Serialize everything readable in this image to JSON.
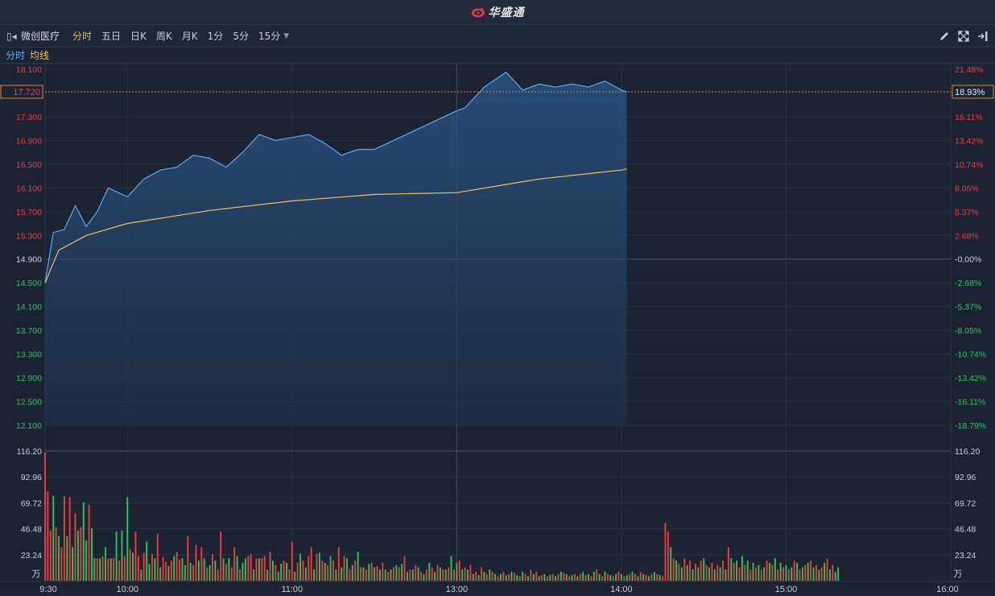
{
  "app": {
    "brand": "华盛通"
  },
  "toolbar": {
    "stock_name": "微创医疗",
    "tabs": [
      {
        "label": "分时",
        "active": true
      },
      {
        "label": "五日",
        "active": false
      },
      {
        "label": "日K",
        "active": false
      },
      {
        "label": "周K",
        "active": false
      },
      {
        "label": "月K",
        "active": false
      },
      {
        "label": "1分",
        "active": false
      },
      {
        "label": "5分",
        "active": false
      },
      {
        "label": "15分",
        "active": false,
        "dropdown": true
      }
    ],
    "icons": [
      "pencil-icon",
      "expand-icon",
      "exit-icon"
    ]
  },
  "legend": {
    "price": "分时",
    "avg": "均线"
  },
  "colors": {
    "price": "#5aa8ee",
    "avg": "#f0c452",
    "up": "#f23b3b",
    "down": "#2ec45a",
    "neutral": "#c8ccd4",
    "bg": "#1c2434",
    "grid": "#2b3547"
  },
  "current": {
    "price_label": "17.720",
    "change_label": "18.93%"
  },
  "chart_data": [
    {
      "type": "line",
      "title": "",
      "x_labels": [
        "9:30",
        "10:00",
        "11:00",
        "13:00",
        "14:00",
        "15:00",
        "16:00"
      ],
      "y_labels": [
        "18.100",
        "17.720",
        "17.300",
        "16.900",
        "16.500",
        "16.100",
        "15.700",
        "15.300",
        "14.900",
        "14.500",
        "14.100",
        "13.700",
        "13.300",
        "12.900",
        "12.500",
        "12.100"
      ],
      "y_percent_labels": [
        "21.48%",
        "18.93%",
        "16.11%",
        "13.42%",
        "10.74%",
        "8.05%",
        "5.37%",
        "2.68%",
        "-0.00%",
        "-2.68%",
        "-5.37%",
        "-8.05%",
        "-10.74%",
        "-13.42%",
        "-16.11%",
        "-18.79%"
      ],
      "ylim": [
        12.1,
        18.1
      ],
      "prev_close": 14.9,
      "series": [
        {
          "name": "分时",
          "x": [
            "9:30",
            "9:33",
            "9:37",
            "9:41",
            "9:45",
            "9:49",
            "9:53",
            "10:00",
            "10:06",
            "10:12",
            "10:18",
            "10:24",
            "10:30",
            "10:36",
            "10:42",
            "10:48",
            "10:54",
            "11:00",
            "11:06",
            "11:12",
            "11:18",
            "11:24",
            "11:30",
            "13:00",
            "13:03",
            "13:10",
            "13:18",
            "13:24",
            "13:30",
            "13:36",
            "13:42",
            "13:48",
            "13:54",
            "14:00",
            "14:02"
          ],
          "values": [
            14.5,
            15.35,
            15.4,
            15.8,
            15.45,
            15.7,
            16.1,
            15.95,
            16.25,
            16.4,
            16.45,
            16.65,
            16.6,
            16.45,
            16.7,
            17.0,
            16.9,
            16.95,
            17.0,
            16.85,
            16.65,
            16.75,
            16.75,
            17.4,
            17.45,
            17.8,
            18.05,
            17.75,
            17.85,
            17.8,
            17.85,
            17.8,
            17.9,
            17.75,
            17.72
          ]
        },
        {
          "name": "均线",
          "x": [
            "9:30",
            "9:35",
            "9:45",
            "10:00",
            "10:30",
            "11:00",
            "11:30",
            "13:00",
            "13:30",
            "14:00",
            "14:02"
          ],
          "values": [
            14.5,
            15.05,
            15.3,
            15.5,
            15.72,
            15.88,
            15.99,
            16.02,
            16.25,
            16.4,
            16.42
          ]
        }
      ]
    },
    {
      "type": "bar",
      "title": "",
      "unit_label": "万",
      "y_labels": [
        "116.20",
        "92.96",
        "69.72",
        "46.48",
        "23.24"
      ],
      "ylim": [
        0,
        116.2
      ],
      "series": [
        {
          "name": "volume",
          "x_start": "9:30",
          "x_step_minutes": 1,
          "values": [
            115,
            80,
            45,
            76,
            48,
            40,
            30,
            76,
            40,
            75,
            30,
            60,
            45,
            48,
            70,
            36,
            68,
            47,
            20,
            20,
            20,
            22,
            30,
            20,
            20,
            20,
            44,
            18,
            45,
            22,
            75,
            28,
            25,
            44,
            22,
            10,
            25,
            35,
            15,
            24,
            20,
            42,
            12,
            21,
            17,
            13,
            18,
            22,
            26,
            19,
            20,
            14,
            40,
            16,
            14,
            32,
            18,
            30,
            20,
            12,
            14,
            24,
            18,
            10,
            44,
            20,
            15,
            20,
            12,
            30,
            22,
            10,
            16,
            20,
            22,
            24,
            10,
            20,
            20,
            20,
            22,
            10,
            26,
            18,
            14,
            8,
            15,
            18,
            16,
            10,
            35,
            8,
            16,
            24,
            18,
            12,
            22,
            30,
            10,
            24,
            25,
            18,
            16,
            14,
            22,
            18,
            10,
            30,
            12,
            22,
            20,
            10,
            14,
            18,
            26,
            12,
            12,
            10,
            15,
            16,
            12,
            13,
            10,
            16,
            10,
            8,
            10,
            12,
            14,
            12,
            15,
            22,
            8,
            10,
            10,
            14,
            12,
            8,
            6,
            10,
            16,
            12,
            8,
            14,
            12,
            10,
            10,
            12,
            22,
            10,
            16,
            18,
            10,
            12,
            10,
            14,
            6,
            8,
            5,
            12,
            8,
            6,
            10,
            8,
            6,
            4,
            6,
            8,
            5,
            6,
            8,
            7,
            5,
            4,
            8,
            6,
            4,
            10,
            6,
            8,
            4,
            5,
            6,
            4,
            5,
            6,
            4,
            6,
            8,
            7,
            6,
            4,
            5,
            6,
            4,
            6,
            8,
            5,
            6,
            4,
            8,
            10,
            6,
            4,
            8,
            6,
            5,
            4,
            6,
            8,
            6,
            4,
            5,
            6,
            8,
            6,
            4,
            8,
            6,
            5,
            4,
            6,
            8,
            6,
            5,
            4,
            52,
            44,
            30,
            20,
            18,
            15,
            12,
            20,
            14,
            18,
            10,
            15,
            12,
            18,
            20,
            14,
            12,
            16,
            10,
            14,
            12,
            18,
            10,
            30,
            20,
            16,
            18,
            12,
            22,
            14,
            18,
            10,
            16,
            12,
            14,
            10,
            12,
            18,
            16,
            14,
            20,
            10,
            16,
            12,
            14,
            10,
            12,
            18,
            16,
            10,
            12,
            14,
            16,
            18,
            12,
            14,
            10,
            12,
            16,
            20,
            10,
            14,
            8,
            12
          ],
          "colors": [
            "r",
            "r",
            "r",
            "g",
            "r",
            "g",
            "r",
            "r",
            "g",
            "r",
            "g",
            "r",
            "g",
            "r",
            "g",
            "g",
            "r",
            "g",
            "g",
            "r",
            "g",
            "r",
            "g",
            "r",
            "g",
            "r",
            "g",
            "r",
            "g",
            "r",
            "g",
            "r",
            "g",
            "r",
            "r",
            "g",
            "r",
            "g",
            "g",
            "r",
            "g",
            "r",
            "g",
            "r",
            "r",
            "g",
            "r",
            "g",
            "r",
            "r",
            "g",
            "g",
            "r",
            "g",
            "r",
            "r",
            "g",
            "r",
            "g",
            "r",
            "g",
            "r",
            "g",
            "r",
            "r",
            "g",
            "r",
            "g",
            "r",
            "r",
            "g",
            "r",
            "g",
            "g",
            "r",
            "r",
            "g",
            "r",
            "g",
            "r",
            "r",
            "g",
            "r",
            "g",
            "r",
            "g",
            "g",
            "r",
            "g",
            "r",
            "r",
            "g",
            "r",
            "g",
            "r",
            "g",
            "r",
            "r",
            "g",
            "r",
            "g",
            "r",
            "g",
            "r",
            "g",
            "r",
            "g",
            "r",
            "g",
            "r",
            "g",
            "r",
            "g",
            "r",
            "g",
            "r",
            "g",
            "r",
            "g",
            "r",
            "g",
            "r",
            "g",
            "r",
            "g",
            "r",
            "g",
            "r",
            "g",
            "r",
            "g",
            "r",
            "g",
            "r",
            "g",
            "r",
            "g",
            "r",
            "g",
            "r",
            "g",
            "r",
            "g",
            "r",
            "g",
            "r",
            "g",
            "r",
            "g",
            "r",
            "g",
            "r",
            "g",
            "r",
            "g",
            "r",
            "g",
            "r",
            "g",
            "r",
            "g",
            "r",
            "g",
            "r",
            "g",
            "r",
            "g",
            "r",
            "g",
            "r",
            "g",
            "r",
            "g",
            "r",
            "g",
            "r",
            "g",
            "r",
            "g",
            "r",
            "g",
            "r",
            "g",
            "r",
            "g",
            "r",
            "g",
            "r",
            "g",
            "r",
            "g",
            "r",
            "g",
            "r",
            "g",
            "r",
            "g",
            "r",
            "g",
            "r",
            "g",
            "r",
            "g",
            "r",
            "g",
            "r",
            "g",
            "r",
            "g",
            "r",
            "g",
            "r",
            "g",
            "r",
            "g",
            "r",
            "g",
            "r",
            "g",
            "r",
            "g",
            "r",
            "g",
            "r",
            "g",
            "r",
            "r",
            "r",
            "g",
            "r",
            "g",
            "r",
            "g",
            "r",
            "g",
            "r",
            "g",
            "r",
            "g",
            "r",
            "g",
            "r",
            "g",
            "r",
            "g",
            "r",
            "g",
            "r",
            "g",
            "r",
            "g",
            "r",
            "g",
            "r",
            "g",
            "r",
            "g",
            "r",
            "g",
            "r",
            "g",
            "r",
            "g",
            "r",
            "g",
            "r",
            "g",
            "r",
            "g",
            "r",
            "g",
            "r",
            "g",
            "r",
            "g",
            "r",
            "g",
            "r",
            "g",
            "r",
            "g",
            "r",
            "g",
            "r",
            "g",
            "r",
            "g",
            "r",
            "g"
          ]
        }
      ]
    }
  ]
}
